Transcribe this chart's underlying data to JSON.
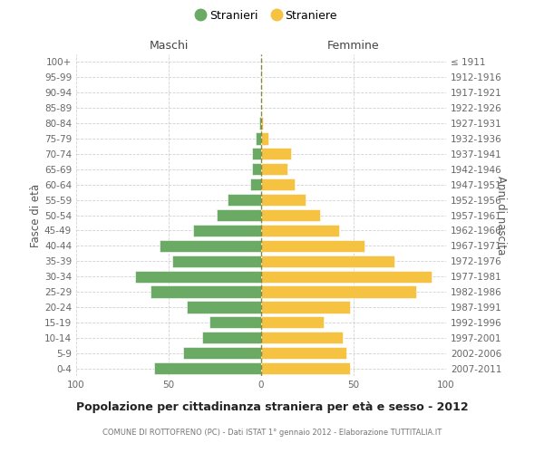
{
  "age_groups": [
    "0-4",
    "5-9",
    "10-14",
    "15-19",
    "20-24",
    "25-29",
    "30-34",
    "35-39",
    "40-44",
    "45-49",
    "50-54",
    "55-59",
    "60-64",
    "65-69",
    "70-74",
    "75-79",
    "80-84",
    "85-89",
    "90-94",
    "95-99",
    "100+"
  ],
  "birth_years": [
    "2007-2011",
    "2002-2006",
    "1997-2001",
    "1992-1996",
    "1987-1991",
    "1982-1986",
    "1977-1981",
    "1972-1976",
    "1967-1971",
    "1962-1966",
    "1957-1961",
    "1952-1956",
    "1947-1951",
    "1942-1946",
    "1937-1941",
    "1932-1936",
    "1927-1931",
    "1922-1926",
    "1917-1921",
    "1912-1916",
    "≤ 1911"
  ],
  "maschi": [
    58,
    42,
    32,
    28,
    40,
    60,
    68,
    48,
    55,
    37,
    24,
    18,
    6,
    5,
    5,
    3,
    1,
    0,
    0,
    0,
    0
  ],
  "femmine": [
    48,
    46,
    44,
    34,
    48,
    84,
    92,
    72,
    56,
    42,
    32,
    24,
    18,
    14,
    16,
    4,
    1,
    0,
    0,
    0,
    0
  ],
  "maschi_color": "#6aaa64",
  "femmine_color": "#f5c242",
  "background_color": "#ffffff",
  "grid_color": "#cccccc",
  "title": "Popolazione per cittadinanza straniera per età e sesso - 2012",
  "subtitle": "COMUNE DI ROTTOFRENO (PC) - Dati ISTAT 1° gennaio 2012 - Elaborazione TUTTITALIA.IT",
  "ylabel_left": "Fasce di età",
  "ylabel_right": "Anni di nascita",
  "xlabel_left": "Maschi",
  "xlabel_right": "Femmine",
  "legend_stranieri": "Stranieri",
  "legend_straniere": "Straniere",
  "xlim": 100
}
